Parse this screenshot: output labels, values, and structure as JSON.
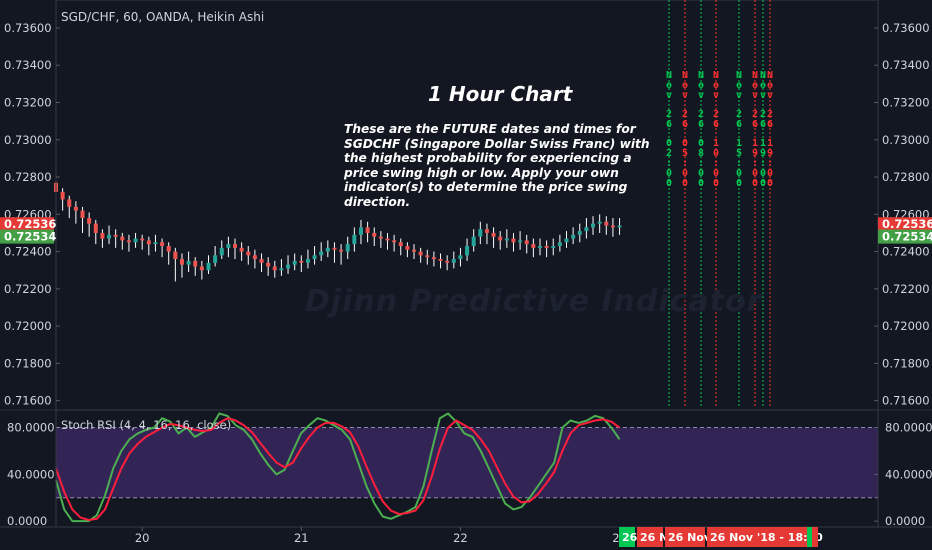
{
  "chart_title": "SGD/CHF, 60, OANDA, Heikin Ashi",
  "headline": "1 Hour Chart",
  "note": "These are the FUTURE dates and times for SGDCHF (Singapore Dollar Swiss Franc) with the highest probability for experiencing a price swing high or low. Apply your own indicator(s) to determine the price swing direction.",
  "watermark": "Djinn Predictive Indicator",
  "colors": {
    "background": "#131722",
    "bull": "#26a69a",
    "bear": "#ef5350",
    "wick": "#ffffff",
    "k_line": "#4caf50",
    "d_line": "#ff1e3c",
    "rsi_band": "#3f2a68",
    "green_marker": "#00c853",
    "red_marker": "#e53935"
  },
  "chart_data": [
    {
      "type": "candlestick",
      "title": "SGD/CHF, 60, OANDA, Heikin Ashi",
      "ylim": [
        0.7155,
        0.7375
      ],
      "y_ticks": [
        "0.73600",
        "0.73400",
        "0.73200",
        "0.73000",
        "0.72800",
        "0.72600",
        "0.72400",
        "0.72200",
        "0.72000",
        "0.71800",
        "0.71600"
      ],
      "price_labels": [
        {
          "text": "0.72536",
          "value": 0.72536,
          "color": "#e53935"
        },
        {
          "text": "0.72534",
          "value": 0.72534,
          "color": "#43a047"
        }
      ],
      "x_ticks": [
        {
          "label": "20",
          "bar": 13
        },
        {
          "label": "21",
          "bar": 37
        },
        {
          "label": "22",
          "bar": 61
        },
        {
          "label": "23",
          "bar": 85
        }
      ],
      "candles": [
        [
          0.7277,
          0.7272,
          0.7279,
          0.7265
        ],
        [
          0.7272,
          0.7268,
          0.7274,
          0.7262
        ],
        [
          0.7268,
          0.7264,
          0.727,
          0.7258
        ],
        [
          0.7264,
          0.7262,
          0.7267,
          0.7255
        ],
        [
          0.7262,
          0.7258,
          0.7264,
          0.725
        ],
        [
          0.7258,
          0.7255,
          0.7261,
          0.7248
        ],
        [
          0.7255,
          0.725,
          0.7257,
          0.7244
        ],
        [
          0.725,
          0.7247,
          0.7252,
          0.7242
        ],
        [
          0.7247,
          0.7249,
          0.7254,
          0.7244
        ],
        [
          0.7249,
          0.7248,
          0.7252,
          0.7242
        ],
        [
          0.7248,
          0.7246,
          0.725,
          0.7241
        ],
        [
          0.7246,
          0.7245,
          0.7249,
          0.724
        ],
        [
          0.7245,
          0.7247,
          0.725,
          0.7242
        ],
        [
          0.7247,
          0.7246,
          0.7249,
          0.7241
        ],
        [
          0.7246,
          0.7244,
          0.7248,
          0.7238
        ],
        [
          0.7244,
          0.7245,
          0.7249,
          0.724
        ],
        [
          0.7245,
          0.7243,
          0.7247,
          0.7237
        ],
        [
          0.7243,
          0.724,
          0.7245,
          0.7233
        ],
        [
          0.724,
          0.7236,
          0.7242,
          0.7224
        ],
        [
          0.7236,
          0.7233,
          0.7239,
          0.7226
        ],
        [
          0.7233,
          0.7235,
          0.724,
          0.7229
        ],
        [
          0.7235,
          0.7232,
          0.7237,
          0.7227
        ],
        [
          0.7232,
          0.723,
          0.7235,
          0.7225
        ],
        [
          0.723,
          0.7234,
          0.7238,
          0.7228
        ],
        [
          0.7234,
          0.7238,
          0.7243,
          0.7232
        ],
        [
          0.7238,
          0.7242,
          0.7246,
          0.7236
        ],
        [
          0.7242,
          0.7244,
          0.7248,
          0.7237
        ],
        [
          0.7244,
          0.7242,
          0.7247,
          0.7236
        ],
        [
          0.7242,
          0.724,
          0.7245,
          0.7235
        ],
        [
          0.724,
          0.7238,
          0.7243,
          0.7233
        ],
        [
          0.7238,
          0.7236,
          0.7241,
          0.7231
        ],
        [
          0.7236,
          0.7234,
          0.7239,
          0.7229
        ],
        [
          0.7234,
          0.7232,
          0.7237,
          0.7227
        ],
        [
          0.7232,
          0.723,
          0.7235,
          0.7226
        ],
        [
          0.723,
          0.7231,
          0.7236,
          0.7227
        ],
        [
          0.7231,
          0.7233,
          0.7238,
          0.7228
        ],
        [
          0.7233,
          0.7235,
          0.7239,
          0.723
        ],
        [
          0.7235,
          0.7234,
          0.7238,
          0.7229
        ],
        [
          0.7234,
          0.7236,
          0.7241,
          0.7231
        ],
        [
          0.7236,
          0.7238,
          0.7243,
          0.7233
        ],
        [
          0.7238,
          0.724,
          0.7245,
          0.7235
        ],
        [
          0.724,
          0.7242,
          0.7246,
          0.7237
        ],
        [
          0.7242,
          0.7241,
          0.7245,
          0.7234
        ],
        [
          0.7241,
          0.724,
          0.7244,
          0.7233
        ],
        [
          0.724,
          0.7244,
          0.7248,
          0.7236
        ],
        [
          0.7244,
          0.7249,
          0.7253,
          0.724
        ],
        [
          0.7249,
          0.7253,
          0.7257,
          0.7244
        ],
        [
          0.7253,
          0.725,
          0.7256,
          0.7245
        ],
        [
          0.725,
          0.7248,
          0.7253,
          0.7243
        ],
        [
          0.7248,
          0.7247,
          0.7251,
          0.7242
        ],
        [
          0.7247,
          0.7246,
          0.725,
          0.7241
        ],
        [
          0.7246,
          0.7245,
          0.7249,
          0.724
        ],
        [
          0.7245,
          0.7243,
          0.7247,
          0.7238
        ],
        [
          0.7243,
          0.7241,
          0.7245,
          0.7237
        ],
        [
          0.7241,
          0.724,
          0.7244,
          0.7236
        ],
        [
          0.724,
          0.7238,
          0.7242,
          0.7234
        ],
        [
          0.7238,
          0.7237,
          0.7241,
          0.7233
        ],
        [
          0.7237,
          0.7236,
          0.724,
          0.7232
        ],
        [
          0.7236,
          0.7235,
          0.7239,
          0.7231
        ],
        [
          0.7235,
          0.7234,
          0.7238,
          0.723
        ],
        [
          0.7234,
          0.7236,
          0.724,
          0.7231
        ],
        [
          0.7236,
          0.7238,
          0.7242,
          0.7232
        ],
        [
          0.7238,
          0.7243,
          0.7247,
          0.7235
        ],
        [
          0.7243,
          0.7248,
          0.7252,
          0.724
        ],
        [
          0.7248,
          0.7252,
          0.7256,
          0.7244
        ],
        [
          0.7252,
          0.725,
          0.7255,
          0.7244
        ],
        [
          0.725,
          0.7248,
          0.7253,
          0.7242
        ],
        [
          0.7248,
          0.7246,
          0.7251,
          0.7241
        ],
        [
          0.7246,
          0.7247,
          0.7252,
          0.7242
        ],
        [
          0.7247,
          0.7245,
          0.725,
          0.724
        ],
        [
          0.7245,
          0.7246,
          0.7251,
          0.7241
        ],
        [
          0.7246,
          0.7244,
          0.7249,
          0.7239
        ],
        [
          0.7244,
          0.7242,
          0.7247,
          0.7237
        ],
        [
          0.7242,
          0.7243,
          0.7247,
          0.7238
        ],
        [
          0.7243,
          0.7242,
          0.7246,
          0.7237
        ],
        [
          0.7242,
          0.7243,
          0.7247,
          0.7238
        ],
        [
          0.7243,
          0.7245,
          0.7249,
          0.724
        ],
        [
          0.7245,
          0.7247,
          0.7251,
          0.7242
        ],
        [
          0.7247,
          0.7249,
          0.7253,
          0.7244
        ],
        [
          0.7249,
          0.7251,
          0.7255,
          0.7245
        ],
        [
          0.7251,
          0.7253,
          0.7258,
          0.7247
        ],
        [
          0.7253,
          0.7255,
          0.7259,
          0.7249
        ],
        [
          0.7255,
          0.7256,
          0.726,
          0.725
        ],
        [
          0.7256,
          0.7254,
          0.7259,
          0.7249
        ],
        [
          0.7254,
          0.7253,
          0.7258,
          0.7248
        ],
        [
          0.7253,
          0.7254,
          0.7258,
          0.7249
        ]
      ]
    },
    {
      "type": "line",
      "title": "Stoch RSI (4, 4, 16, 16, close)",
      "ylim": [
        -5,
        95
      ],
      "y_ticks": [
        "80.0000",
        "40.0000",
        "0.0000"
      ],
      "band": [
        20,
        80
      ],
      "series": [
        {
          "color": "#4caf50",
          "values": [
            35,
            10,
            0,
            0,
            0,
            5,
            22,
            45,
            60,
            70,
            75,
            78,
            80,
            88,
            85,
            75,
            80,
            72,
            76,
            80,
            92,
            90,
            82,
            78,
            70,
            58,
            48,
            40,
            44,
            60,
            75,
            82,
            88,
            86,
            82,
            78,
            70,
            50,
            30,
            15,
            4,
            2,
            5,
            8,
            12,
            30,
            60,
            88,
            92,
            85,
            75,
            72,
            60,
            45,
            30,
            15,
            10,
            12,
            20,
            30,
            40,
            50,
            80,
            86,
            84,
            86,
            90,
            88,
            80,
            70
          ]
        },
        {
          "color": "#ff1e3c",
          "values": [
            45,
            25,
            10,
            3,
            1,
            2,
            10,
            28,
            45,
            58,
            66,
            72,
            76,
            80,
            83,
            82,
            80,
            78,
            77,
            78,
            84,
            88,
            86,
            82,
            76,
            67,
            58,
            50,
            46,
            50,
            62,
            72,
            80,
            84,
            84,
            81,
            76,
            64,
            47,
            31,
            17,
            9,
            6,
            7,
            9,
            18,
            38,
            62,
            80,
            86,
            82,
            78,
            70,
            60,
            46,
            32,
            21,
            16,
            17,
            23,
            32,
            42,
            60,
            75,
            82,
            84,
            86,
            87,
            85,
            80
          ]
        }
      ]
    }
  ],
  "date_markers": [
    {
      "text": "Nov 26 02:00",
      "color": "#00c853",
      "col": 0
    },
    {
      "text": "Nov 26 05:00",
      "color": "#ff3030",
      "col": 1
    },
    {
      "text": "Nov 26 08:00",
      "color": "#00c853",
      "col": 2
    },
    {
      "text": "Nov 26 10:00",
      "color": "#ff3030",
      "col": 3
    },
    {
      "text": "Nov 26 15:00",
      "color": "#00c853",
      "col": 4
    },
    {
      "text": "Nov 26 19:00",
      "color": "#ff3030",
      "col": 5
    },
    {
      "text": "Nov 26 19:00",
      "color": "#00c853",
      "col": 6
    },
    {
      "text": "Nov 26 19:00",
      "color": "#ff3030",
      "col": 7
    }
  ],
  "bottom_labels": [
    {
      "text": "26",
      "bg": "#00c853"
    },
    {
      "text": "26 N",
      "bg": "#e53935"
    },
    {
      "text": "26 Nov '",
      "bg": "#e53935"
    },
    {
      "text": "26 Nov '18 - 18:00",
      "bg": "#e53935"
    }
  ]
}
